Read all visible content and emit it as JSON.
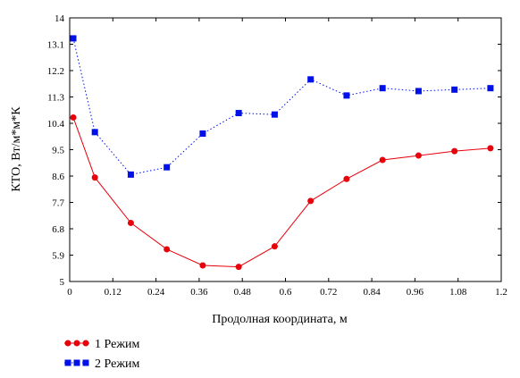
{
  "chart_data": {
    "type": "line",
    "xlabel": "Продолная координата, м",
    "ylabel": "КТО, Вт/м*м*К",
    "xlim": [
      0,
      1.2
    ],
    "ylim": [
      5,
      14
    ],
    "x_ticks": [
      "0",
      "0.12",
      "0.24",
      "0.36",
      "0.48",
      "0.6",
      "0.72",
      "0.84",
      "0.96",
      "1.08",
      "1.2"
    ],
    "y_ticks": [
      "5",
      "5.9",
      "6.8",
      "7.7",
      "8.6",
      "9.5",
      "10.4",
      "11.3",
      "12.2",
      "13.1",
      "14"
    ],
    "grid": false,
    "legend_position": "bottom-left",
    "series": [
      {
        "name": "1 Режим",
        "color": "#e8000b",
        "line_style": "solid",
        "marker": "circle",
        "x": [
          0.01,
          0.07,
          0.17,
          0.27,
          0.37,
          0.47,
          0.57,
          0.67,
          0.77,
          0.87,
          0.97,
          1.07,
          1.17
        ],
        "y": [
          10.6,
          8.55,
          7.0,
          6.1,
          5.55,
          5.5,
          6.2,
          7.75,
          8.5,
          9.15,
          9.3,
          9.45,
          9.55
        ]
      },
      {
        "name": "2 Режим",
        "color": "#0010e8",
        "line_style": "dotted",
        "marker": "square",
        "x": [
          0.01,
          0.07,
          0.17,
          0.27,
          0.37,
          0.47,
          0.57,
          0.67,
          0.77,
          0.87,
          0.97,
          1.07,
          1.17
        ],
        "y": [
          13.3,
          10.1,
          8.65,
          8.9,
          10.05,
          10.75,
          10.7,
          11.9,
          11.35,
          11.6,
          11.5,
          11.55,
          11.6
        ]
      }
    ]
  }
}
